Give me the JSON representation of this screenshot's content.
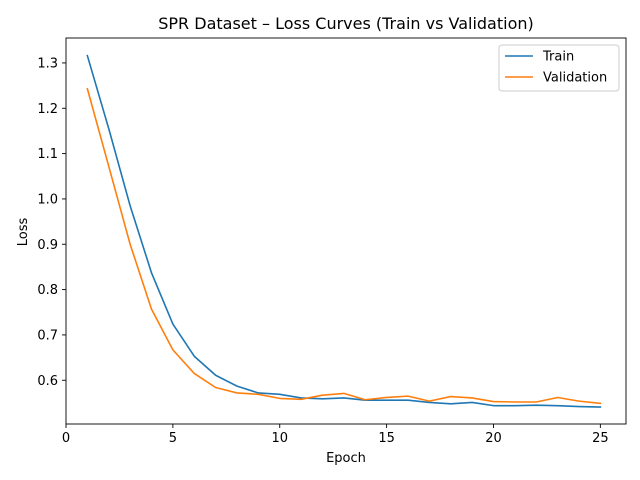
{
  "chart_data": {
    "type": "line",
    "title": "SPR Dataset – Loss Curves (Train vs Validation)",
    "xlabel": "Epoch",
    "ylabel": "Loss",
    "xlim": [
      0,
      26.2
    ],
    "ylim": [
      0.5035,
      1.355
    ],
    "xticks": [
      0,
      5,
      10,
      15,
      20,
      25
    ],
    "yticks": [
      0.6,
      0.7,
      0.8,
      0.9,
      1.0,
      1.1,
      1.2,
      1.3
    ],
    "ytick_labels": [
      "0.6",
      "0.7",
      "0.8",
      "0.9",
      "1.0",
      "1.1",
      "1.2",
      "1.3"
    ],
    "grid": false,
    "legend_position": "top-right",
    "x": [
      1,
      2,
      3,
      4,
      5,
      6,
      7,
      8,
      9,
      10,
      11,
      12,
      13,
      14,
      15,
      16,
      17,
      18,
      19,
      20,
      21,
      22,
      23,
      24,
      25
    ],
    "series": [
      {
        "name": "Train",
        "color": "#1f77b4",
        "values": [
          1.316,
          1.155,
          0.985,
          0.837,
          0.724,
          0.653,
          0.611,
          0.587,
          0.572,
          0.569,
          0.561,
          0.559,
          0.561,
          0.556,
          0.556,
          0.556,
          0.551,
          0.548,
          0.551,
          0.544,
          0.544,
          0.545,
          0.544,
          0.542,
          0.541
        ]
      },
      {
        "name": "Validation",
        "color": "#ff7f0e",
        "values": [
          1.243,
          1.072,
          0.9,
          0.757,
          0.667,
          0.615,
          0.584,
          0.572,
          0.569,
          0.56,
          0.558,
          0.567,
          0.571,
          0.557,
          0.562,
          0.565,
          0.554,
          0.564,
          0.561,
          0.553,
          0.552,
          0.552,
          0.562,
          0.554,
          0.549
        ]
      }
    ]
  }
}
